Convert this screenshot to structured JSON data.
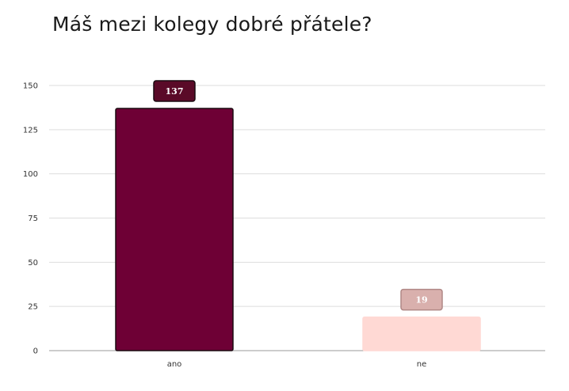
{
  "chart_data": {
    "type": "bar",
    "title": "Máš mezi kolegy dobré přátele?",
    "categories": [
      "ano",
      "ne"
    ],
    "values": [
      137,
      19
    ],
    "data_labels": [
      "137",
      "19"
    ],
    "ylim": [
      0,
      150
    ],
    "yticks": [
      0,
      25,
      50,
      75,
      100,
      125,
      150
    ],
    "grid": true,
    "legend": "none",
    "colors": {
      "bars": [
        "#6e0035",
        "#ffd9d4"
      ],
      "bar_borders": [
        "#1a0a10",
        "#ffd9d4"
      ],
      "label_fills": [
        "#5a0a28",
        "#d9b0ad"
      ],
      "label_borders": [
        "#1a0a10",
        "#b08886"
      ],
      "label_text": [
        "#ffffff",
        "#ffffff"
      ],
      "grid": "#dddddd",
      "axis": "#999999"
    }
  }
}
